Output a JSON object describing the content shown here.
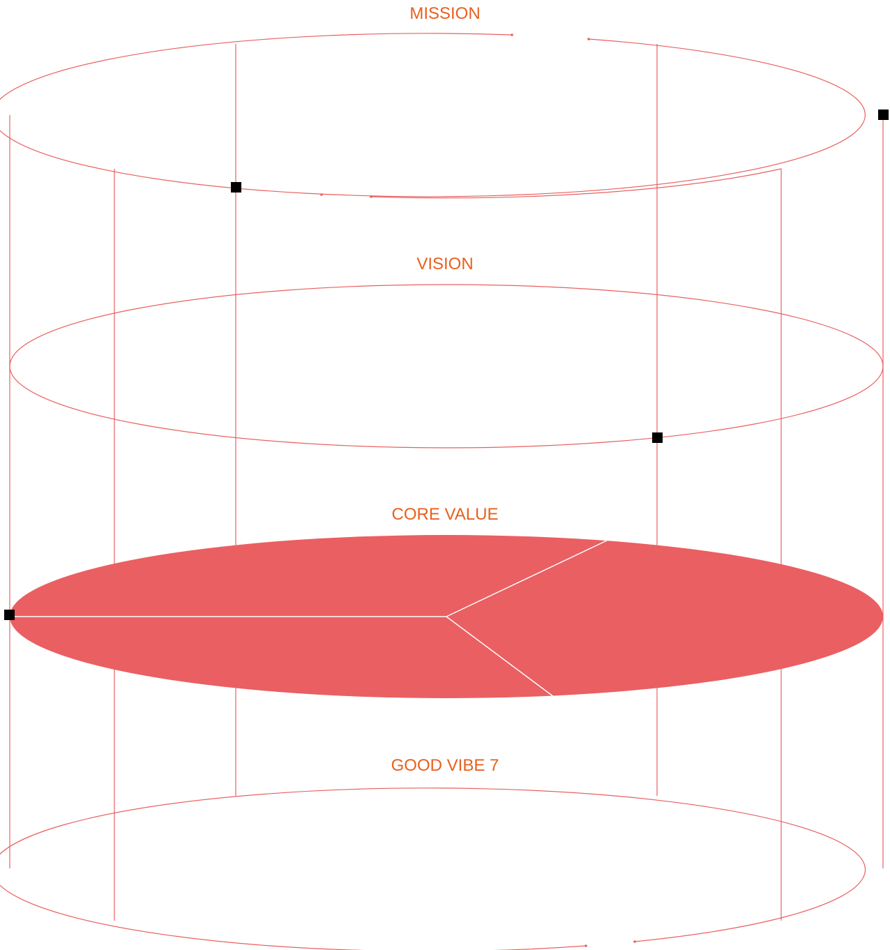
{
  "diagram": {
    "layers": [
      {
        "key": "mission",
        "label": "MISSION"
      },
      {
        "key": "vision",
        "label": "VISION"
      },
      {
        "key": "core_value",
        "label": "CORE VALUE"
      },
      {
        "key": "good_vibe",
        "label": "GOOD VIBE 7"
      }
    ],
    "active_layer": "core_value",
    "colors": {
      "label": "#e8601e",
      "line": "#e86060",
      "fill": "#ea5f62",
      "marker": "#000000"
    }
  }
}
